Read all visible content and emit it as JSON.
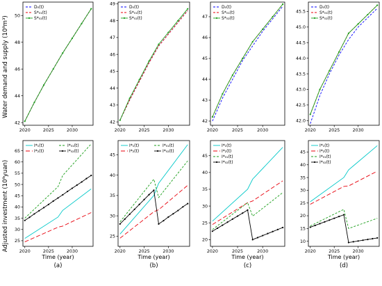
{
  "figure": {
    "ylabel_top": "Water demand and supply (10⁹m³)",
    "ylabel_bottom": "Adjusted investment (10⁹yuan)"
  },
  "chart_data": [
    {
      "id": "top-a",
      "type": "line",
      "x_ticks": [
        2020,
        2025,
        2030
      ],
      "y_ticks": [
        42,
        44,
        46,
        48,
        50
      ],
      "xlim": [
        2019.6,
        2034.4
      ],
      "ylim": [
        41.8,
        51.0
      ],
      "xlabel": "",
      "panel_label": "",
      "series": [
        {
          "name": "D₀(t)",
          "color": "#0000ff",
          "dash": "3,2",
          "marker": false,
          "x": [
            2020,
            2022,
            2024,
            2026,
            2028,
            2030,
            2032,
            2034
          ],
          "y": [
            42.1,
            43.5,
            44.8,
            46.0,
            47.2,
            48.3,
            49.4,
            50.5
          ]
        },
        {
          "name": "S*₀₁(t)",
          "color": "#e8000b",
          "dash": "3,2",
          "marker": false,
          "x": [
            2020,
            2022,
            2024,
            2026,
            2028,
            2030,
            2032,
            2034
          ],
          "y": [
            42.1,
            43.5,
            44.8,
            46.0,
            47.2,
            48.3,
            49.4,
            50.5
          ]
        },
        {
          "name": "S*₀₂(t)",
          "color": "#1a9e1a",
          "dash": "",
          "marker": true,
          "x": [
            2020,
            2022,
            2024,
            2026,
            2028,
            2030,
            2032,
            2034
          ],
          "y": [
            42.1,
            43.5,
            44.8,
            46.0,
            47.2,
            48.3,
            49.4,
            50.5
          ]
        }
      ]
    },
    {
      "id": "top-b",
      "type": "line",
      "x_ticks": [
        2020,
        2025,
        2030
      ],
      "y_ticks": [
        42,
        43,
        44,
        45,
        46,
        47,
        48,
        49
      ],
      "xlim": [
        2019.6,
        2034.4
      ],
      "ylim": [
        41.8,
        49.1
      ],
      "xlabel": "",
      "panel_label": "",
      "series": [
        {
          "name": "D₀(t)",
          "color": "#0000ff",
          "dash": "3,2",
          "marker": false,
          "x": [
            2020,
            2022,
            2024,
            2026,
            2028,
            2030,
            2032,
            2034
          ],
          "y": [
            42.1,
            43.3,
            44.4,
            45.5,
            46.5,
            47.2,
            47.9,
            48.6
          ]
        },
        {
          "name": "S*₀₁(t)",
          "color": "#e8000b",
          "dash": "3,2",
          "marker": false,
          "x": [
            2020,
            2022,
            2024,
            2026,
            2028,
            2030,
            2032,
            2034
          ],
          "y": [
            42.1,
            43.3,
            44.4,
            45.5,
            46.5,
            47.2,
            47.9,
            48.6
          ]
        },
        {
          "name": "S*₀₂(t)",
          "color": "#1a9e1a",
          "dash": "",
          "marker": true,
          "x": [
            2020,
            2022,
            2024,
            2026,
            2028,
            2030,
            2032,
            2034
          ],
          "y": [
            42.1,
            43.4,
            44.5,
            45.6,
            46.6,
            47.3,
            48.0,
            48.7
          ]
        }
      ]
    },
    {
      "id": "top-c",
      "type": "line",
      "x_ticks": [
        2020,
        2025,
        2030
      ],
      "y_ticks": [
        42,
        43,
        44,
        45,
        46,
        47
      ],
      "xlim": [
        2019.6,
        2034.4
      ],
      "ylim": [
        41.8,
        47.7
      ],
      "xlabel": "",
      "panel_label": "",
      "series": [
        {
          "name": "D₀(t)",
          "color": "#0000ff",
          "dash": "3,2",
          "marker": false,
          "x": [
            2020,
            2022,
            2024,
            2026,
            2028,
            2030,
            2032,
            2034
          ],
          "y": [
            42.0,
            43.1,
            44.0,
            44.9,
            45.6,
            46.3,
            46.9,
            47.5
          ]
        },
        {
          "name": "S*₀₁(t)",
          "color": "#e8000b",
          "dash": "3,2",
          "marker": false,
          "x": [
            2020,
            2022,
            2024,
            2026,
            2028,
            2030,
            2032,
            2034
          ],
          "y": [
            42.2,
            43.3,
            44.2,
            45.0,
            45.8,
            46.4,
            47.0,
            47.6
          ]
        },
        {
          "name": "S*₀₂(t)",
          "color": "#1a9e1a",
          "dash": "",
          "marker": true,
          "x": [
            2020,
            2022,
            2024,
            2026,
            2028,
            2030,
            2032,
            2034
          ],
          "y": [
            42.2,
            43.3,
            44.2,
            45.0,
            45.8,
            46.4,
            47.0,
            47.6
          ]
        }
      ]
    },
    {
      "id": "top-d",
      "type": "line",
      "x_ticks": [
        2020,
        2025,
        2030
      ],
      "y_ticks": [
        42.0,
        42.5,
        43.0,
        43.5,
        44.0,
        44.5,
        45.0,
        45.5
      ],
      "xlim": [
        2019.6,
        2034.4
      ],
      "ylim": [
        41.85,
        45.8
      ],
      "xlabel": "",
      "panel_label": "",
      "series": [
        {
          "name": "D₀(t)",
          "color": "#0000ff",
          "dash": "3,2",
          "marker": false,
          "x": [
            2020,
            2022,
            2024,
            2026,
            2028,
            2030,
            2032,
            2034
          ],
          "y": [
            41.9,
            42.8,
            43.5,
            44.1,
            44.6,
            45.0,
            45.3,
            45.6
          ]
        },
        {
          "name": "S*₀₁(t)",
          "color": "#e8000b",
          "dash": "3,2",
          "marker": false,
          "x": [
            2020,
            2022,
            2024,
            2026,
            2028,
            2030,
            2032,
            2034
          ],
          "y": [
            42.2,
            43.0,
            43.6,
            44.2,
            44.8,
            45.1,
            45.4,
            45.7
          ]
        },
        {
          "name": "S*₀₂(t)",
          "color": "#1a9e1a",
          "dash": "",
          "marker": true,
          "x": [
            2020,
            2022,
            2024,
            2026,
            2028,
            2030,
            2032,
            2034
          ],
          "y": [
            42.2,
            43.0,
            43.6,
            44.2,
            44.8,
            45.1,
            45.4,
            45.7
          ]
        }
      ]
    },
    {
      "id": "bottom-a",
      "type": "line",
      "x_ticks": [
        2020,
        2025,
        2030
      ],
      "y_ticks": [
        25,
        30,
        35,
        40,
        45,
        50,
        55,
        60,
        65
      ],
      "xlim": [
        2019.6,
        2034.4
      ],
      "ylim": [
        22.5,
        69.5
      ],
      "xlabel": "Time (year)",
      "panel_label": "(a)",
      "series": [
        {
          "name": "I*₁(t)",
          "color": "#00c8c8",
          "dash": "",
          "marker": false,
          "x": [
            2020,
            2027,
            2028,
            2034
          ],
          "y": [
            26.0,
            35.5,
            38.5,
            48.0
          ]
        },
        {
          "name": "I*₂(t)",
          "color": "#e8000b",
          "dash": "6,3",
          "marker": false,
          "x": [
            2020,
            2027,
            2028,
            2034
          ],
          "y": [
            24.5,
            31.0,
            31.5,
            37.5
          ]
        },
        {
          "name": "I*₀₁(t)",
          "color": "#1a9e1a",
          "dash": "3,2",
          "marker": false,
          "x": [
            2020,
            2027,
            2028,
            2034
          ],
          "y": [
            35.0,
            49.0,
            54.0,
            68.0
          ]
        },
        {
          "name": "I*₀₂(t)",
          "color": "#000000",
          "dash": "",
          "marker": true,
          "x": [
            2020,
            2021,
            2022,
            2023,
            2024,
            2025,
            2026,
            2027,
            2028,
            2029,
            2030,
            2031,
            2032,
            2033,
            2034
          ],
          "y": [
            34.0,
            35.4,
            36.9,
            38.3,
            39.7,
            41.1,
            42.6,
            44.0,
            45.4,
            46.9,
            48.3,
            49.7,
            51.1,
            52.6,
            54.0
          ]
        }
      ]
    },
    {
      "id": "bottom-b",
      "type": "line",
      "x_ticks": [
        2020,
        2025,
        2030
      ],
      "y_ticks": [
        25,
        30,
        35,
        40,
        45
      ],
      "xlim": [
        2019.6,
        2034.4
      ],
      "ylim": [
        22.5,
        48.5
      ],
      "xlabel": "Time (year)",
      "panel_label": "(b)",
      "series": [
        {
          "name": "I*₁(t)",
          "color": "#00c8c8",
          "dash": "",
          "marker": false,
          "x": [
            2020,
            2027,
            2028,
            2034
          ],
          "y": [
            25.5,
            35.0,
            38.0,
            47.5
          ]
        },
        {
          "name": "I*₂(t)",
          "color": "#e8000b",
          "dash": "6,3",
          "marker": false,
          "x": [
            2020,
            2027,
            2028,
            2034
          ],
          "y": [
            24.5,
            31.0,
            31.5,
            37.5
          ]
        },
        {
          "name": "I*₀₁(t)",
          "color": "#1a9e1a",
          "dash": "3,2",
          "marker": false,
          "x": [
            2020,
            2027,
            2028,
            2034
          ],
          "y": [
            28.5,
            39.0,
            34.5,
            43.5
          ]
        },
        {
          "name": "I*₀₂(t)",
          "color": "#000000",
          "dash": "",
          "marker": true,
          "x": [
            2020,
            2021,
            2022,
            2023,
            2024,
            2025,
            2026,
            2027,
            2028,
            2029,
            2030,
            2031,
            2032,
            2033,
            2034
          ],
          "y": [
            28.0,
            29.2,
            30.4,
            31.6,
            32.8,
            34.0,
            35.2,
            36.3,
            28.0,
            28.8,
            29.7,
            30.5,
            31.3,
            32.2,
            33.0
          ]
        }
      ]
    },
    {
      "id": "bottom-c",
      "type": "line",
      "x_ticks": [
        2020,
        2025,
        2030
      ],
      "y_ticks": [
        20,
        25,
        30,
        35,
        40,
        45
      ],
      "xlim": [
        2019.6,
        2034.4
      ],
      "ylim": [
        18.0,
        49.5
      ],
      "xlabel": "Time (year)",
      "panel_label": "(c)",
      "series": [
        {
          "name": "I*₁(t)",
          "color": "#00c8c8",
          "dash": "",
          "marker": false,
          "x": [
            2020,
            2027,
            2028,
            2034
          ],
          "y": [
            25.5,
            35.0,
            38.0,
            47.5
          ]
        },
        {
          "name": "I*₂(t)",
          "color": "#e8000b",
          "dash": "6,3",
          "marker": false,
          "x": [
            2020,
            2027,
            2028,
            2034
          ],
          "y": [
            24.5,
            31.0,
            31.5,
            37.5
          ]
        },
        {
          "name": "I*₀₁(t)",
          "color": "#1a9e1a",
          "dash": "3,2",
          "marker": false,
          "x": [
            2020,
            2027,
            2028,
            2034
          ],
          "y": [
            23.0,
            31.0,
            27.0,
            34.0
          ]
        },
        {
          "name": "I*₀₂(t)",
          "color": "#000000",
          "dash": "",
          "marker": true,
          "x": [
            2020,
            2021,
            2022,
            2023,
            2024,
            2025,
            2026,
            2027,
            2028,
            2029,
            2030,
            2031,
            2032,
            2033,
            2034
          ],
          "y": [
            22.5,
            23.4,
            24.3,
            25.2,
            26.1,
            27.0,
            27.9,
            28.8,
            20.0,
            20.6,
            21.2,
            21.8,
            22.4,
            23.0,
            23.6
          ]
        }
      ]
    },
    {
      "id": "bottom-d",
      "type": "line",
      "x_ticks": [
        2020,
        2025,
        2030
      ],
      "y_ticks": [
        10,
        15,
        20,
        25,
        30,
        35,
        40,
        45
      ],
      "xlim": [
        2019.6,
        2034.4
      ],
      "ylim": [
        8.0,
        49.5
      ],
      "xlabel": "Time (year)",
      "panel_label": "(d)",
      "series": [
        {
          "name": "I*₁(t)",
          "color": "#00c8c8",
          "dash": "",
          "marker": false,
          "x": [
            2020,
            2027,
            2028,
            2034
          ],
          "y": [
            25.5,
            35.0,
            38.0,
            47.5
          ]
        },
        {
          "name": "I*₂(t)",
          "color": "#e8000b",
          "dash": "6,3",
          "marker": false,
          "x": [
            2020,
            2027,
            2028,
            2034
          ],
          "y": [
            24.5,
            31.5,
            31.7,
            37.5
          ]
        },
        {
          "name": "I*₀₁(t)",
          "color": "#1a9e1a",
          "dash": "3,2",
          "marker": false,
          "x": [
            2020,
            2027,
            2028,
            2034
          ],
          "y": [
            16.0,
            22.5,
            15.0,
            19.0
          ]
        },
        {
          "name": "I*₀₂(t)",
          "color": "#000000",
          "dash": "",
          "marker": true,
          "x": [
            2020,
            2021,
            2022,
            2023,
            2024,
            2025,
            2026,
            2027,
            2028,
            2029,
            2030,
            2031,
            2032,
            2033,
            2034
          ],
          "y": [
            15.5,
            16.2,
            16.9,
            17.6,
            18.3,
            19.0,
            19.7,
            20.4,
            9.5,
            9.8,
            10.1,
            10.4,
            10.7,
            11.0,
            11.3
          ]
        }
      ]
    }
  ]
}
